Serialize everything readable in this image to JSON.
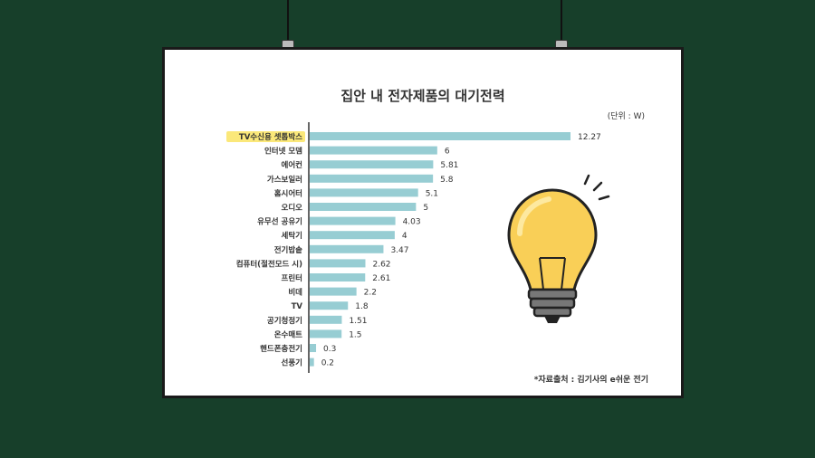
{
  "chart_data": {
    "type": "bar",
    "orientation": "horizontal",
    "title": "집안 내 전자제품의 대기전력",
    "unit_label": "(단위 : W)",
    "source": "*자료출처 : 김기사의 e쉬운 전기",
    "categories": [
      "TV수신용 셋톱박스",
      "인터넷 모뎀",
      "에어컨",
      "가스보일러",
      "홈시어터",
      "오디오",
      "유무선 공유기",
      "세탁기",
      "전기밥솥",
      "컴퓨터(절전모드 시)",
      "프린터",
      "비데",
      "TV",
      "공기청정기",
      "온수매트",
      "핸드폰충전기",
      "선풍기"
    ],
    "values": [
      12.27,
      6,
      5.81,
      5.8,
      5.1,
      5,
      4.03,
      4,
      3.47,
      2.62,
      2.61,
      2.2,
      1.8,
      1.51,
      1.5,
      0.3,
      0.2
    ],
    "value_labels": [
      "12.27",
      "6",
      "5.81",
      "5.8",
      "5.1",
      "5",
      "4.03",
      "4",
      "3.47",
      "2.62",
      "2.61",
      "2.2",
      "1.8",
      "1.51",
      "1.5",
      "0.3",
      "0.2"
    ],
    "highlight_index": 0,
    "colors": {
      "bar": "#97cdd3",
      "highlight": "#fbe87a",
      "bulb": "#f9cf57"
    },
    "xlim": [
      0,
      12.27
    ]
  }
}
